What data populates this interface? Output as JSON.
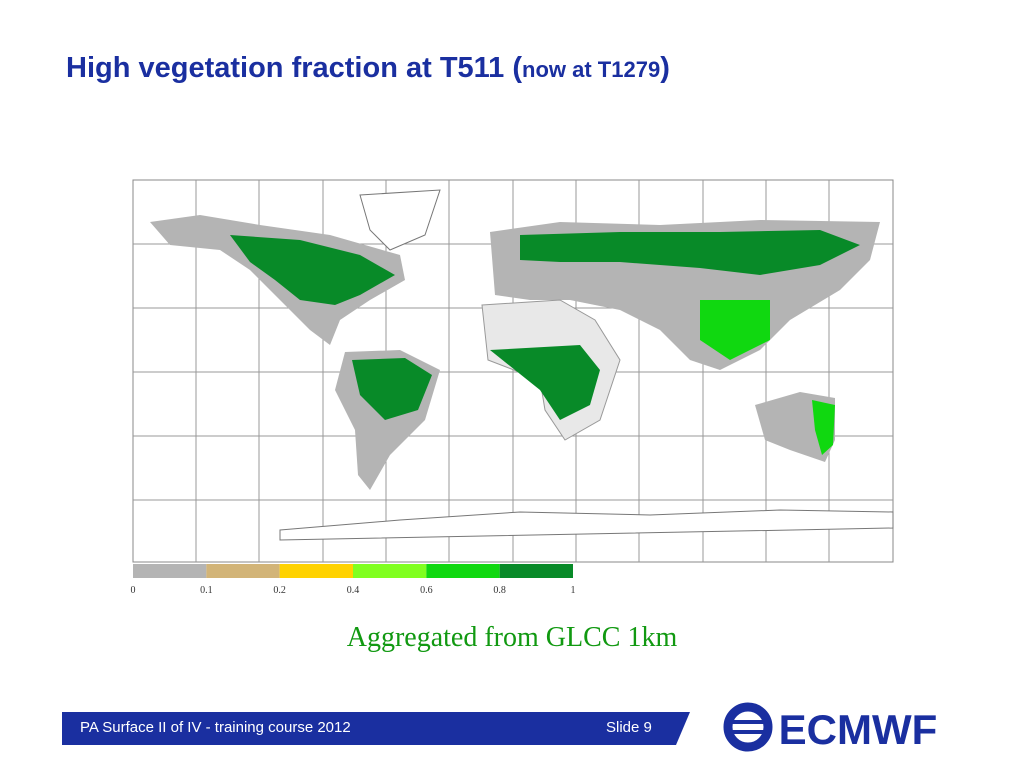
{
  "header": {
    "title": "High vegetation fraction at T511 (",
    "title_note": "now at T1279",
    "title_end": ")"
  },
  "legend": {
    "labels": [
      "0",
      "0.1",
      "0.2",
      "0.4",
      "0.6",
      "0.8",
      "1"
    ],
    "colors": [
      "#b4b4b4",
      "#d2b478",
      "#ffd200",
      "#80ff20",
      "#10d810",
      "#088a28"
    ]
  },
  "caption": "Aggregated from GLCC 1km",
  "footer": {
    "course": "PA Surface II of IV - training course 2012",
    "slide": "Slide 9",
    "logo": "ECMWF"
  }
}
